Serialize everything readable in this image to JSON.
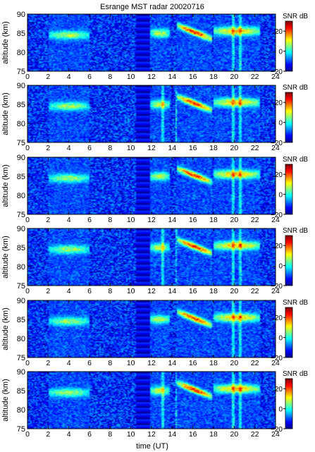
{
  "chart_data": {
    "type": "heatmap",
    "title": "Esrange MST radar 20020716",
    "xlabel": "time (UT)",
    "ylabel": "altitude (km)",
    "xlim": [
      0,
      24
    ],
    "ylim": [
      75,
      90
    ],
    "x_ticks": [
      "0",
      "2",
      "4",
      "6",
      "8",
      "10",
      "12",
      "14",
      "16",
      "18",
      "20",
      "22",
      "24"
    ],
    "y_ticks": [
      "75",
      "80",
      "85",
      "90"
    ],
    "colorbar": {
      "label": "SNR dB",
      "range": [
        -20,
        30
      ],
      "ticks": [
        "20",
        "0",
        "−20"
      ],
      "colormap": "jet"
    },
    "panels": 6,
    "features": [
      {
        "name": "echo layer",
        "time_start": 2.0,
        "time_end": 6.0,
        "alt_center": 84.5,
        "alt_top": 86.0,
        "alt_bottom": 83.0,
        "peak_snr": 10
      },
      {
        "name": "echo layer",
        "time_start": 11.8,
        "time_end": 13.8,
        "alt_center": 85.0,
        "alt_top": 86.5,
        "alt_bottom": 83.5,
        "peak_snr": 12
      },
      {
        "name": "strong echo",
        "time_start": 14.5,
        "time_end": 17.8,
        "alt_start": 87.0,
        "alt_end": 83.5,
        "peak_snr": 28
      },
      {
        "name": "echo layer",
        "time_start": 18.0,
        "time_end": 22.5,
        "alt_center": 85.5,
        "alt_top": 87.0,
        "alt_bottom": 84.0,
        "peak_snr": 18
      },
      {
        "name": "data gap stripes",
        "time_start": 10.5,
        "time_end": 11.8
      },
      {
        "name": "interference",
        "time_values": [
          13.1,
          14.4,
          19.9,
          20.6
        ]
      }
    ],
    "background_snr": -12,
    "colors": {
      "jet_stops": [
        "#00008f",
        "#0000ff",
        "#0080ff",
        "#00ffff",
        "#80ff80",
        "#ffff00",
        "#ff8000",
        "#ff0000",
        "#800000"
      ]
    }
  }
}
